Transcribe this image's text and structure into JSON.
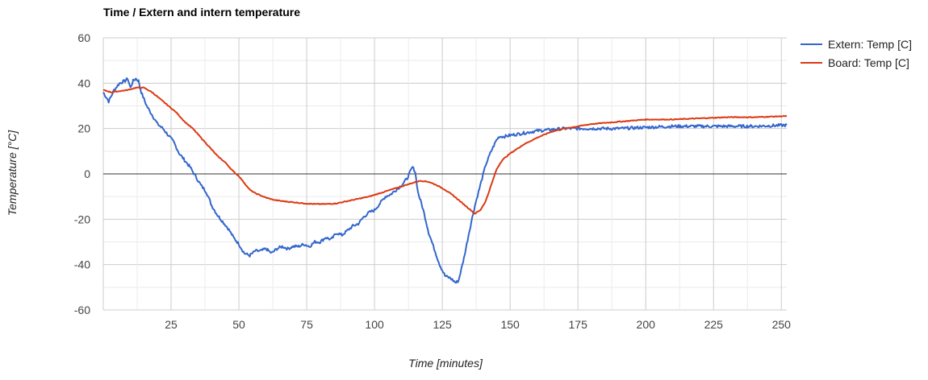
{
  "chart_data": {
    "type": "line",
    "title": "Time / Extern and intern temperature",
    "xlabel": "Time [minutes]",
    "ylabel": "Temperature [°C]",
    "xlim": [
      0,
      252
    ],
    "ylim": [
      -60,
      60
    ],
    "x_ticks": [
      25,
      50,
      75,
      100,
      125,
      150,
      175,
      200,
      225,
      250
    ],
    "y_ticks": [
      60,
      40,
      20,
      0,
      -20,
      -40,
      -60
    ],
    "grid": true,
    "legend_position": "right",
    "series": [
      {
        "name": "Extern: Temp [C]",
        "color": "#3366cc",
        "points": [
          [
            0,
            36
          ],
          [
            2,
            32
          ],
          [
            4,
            37
          ],
          [
            6,
            40
          ],
          [
            8,
            41
          ],
          [
            9,
            42
          ],
          [
            10,
            38
          ],
          [
            11,
            41
          ],
          [
            12,
            42
          ],
          [
            13,
            41
          ],
          [
            14,
            36
          ],
          [
            16,
            30
          ],
          [
            18,
            26
          ],
          [
            20,
            22
          ],
          [
            22,
            20
          ],
          [
            24,
            17
          ],
          [
            26,
            14
          ],
          [
            28,
            9
          ],
          [
            30,
            6
          ],
          [
            32,
            3
          ],
          [
            34,
            -1
          ],
          [
            36,
            -5
          ],
          [
            38,
            -8
          ],
          [
            40,
            -14
          ],
          [
            42,
            -18
          ],
          [
            44,
            -21
          ],
          [
            46,
            -24
          ],
          [
            48,
            -28
          ],
          [
            50,
            -31
          ],
          [
            52,
            -35
          ],
          [
            54,
            -36
          ],
          [
            56,
            -34
          ],
          [
            58,
            -34
          ],
          [
            60,
            -33
          ],
          [
            62,
            -35
          ],
          [
            64,
            -33
          ],
          [
            66,
            -32
          ],
          [
            68,
            -33
          ],
          [
            70,
            -32
          ],
          [
            72,
            -32
          ],
          [
            74,
            -31
          ],
          [
            76,
            -32
          ],
          [
            78,
            -30
          ],
          [
            80,
            -30
          ],
          [
            82,
            -28
          ],
          [
            84,
            -29
          ],
          [
            86,
            -26
          ],
          [
            88,
            -27
          ],
          [
            90,
            -25
          ],
          [
            92,
            -23
          ],
          [
            94,
            -22
          ],
          [
            96,
            -19
          ],
          [
            98,
            -17
          ],
          [
            100,
            -16
          ],
          [
            102,
            -13
          ],
          [
            104,
            -10
          ],
          [
            106,
            -9
          ],
          [
            108,
            -7
          ],
          [
            110,
            -5
          ],
          [
            112,
            -2
          ],
          [
            114,
            3
          ],
          [
            115,
            1
          ],
          [
            116,
            -8
          ],
          [
            118,
            -16
          ],
          [
            120,
            -26
          ],
          [
            122,
            -33
          ],
          [
            124,
            -40
          ],
          [
            126,
            -45
          ],
          [
            128,
            -46
          ],
          [
            130,
            -48
          ],
          [
            131,
            -47
          ],
          [
            133,
            -37
          ],
          [
            135,
            -25
          ],
          [
            137,
            -14
          ],
          [
            139,
            -5
          ],
          [
            141,
            4
          ],
          [
            143,
            10
          ],
          [
            145,
            15
          ],
          [
            146,
            16.5
          ],
          [
            148,
            16.5
          ],
          [
            150,
            17
          ],
          [
            155,
            18
          ],
          [
            160,
            19
          ],
          [
            165,
            19.5
          ],
          [
            170,
            20
          ],
          [
            175,
            20
          ],
          [
            180,
            20
          ],
          [
            190,
            20
          ],
          [
            200,
            20.5
          ],
          [
            210,
            21
          ],
          [
            220,
            21
          ],
          [
            230,
            21
          ],
          [
            240,
            21
          ],
          [
            252,
            21.5
          ]
        ]
      },
      {
        "name": "Board: Temp [C]",
        "color": "#dc3912",
        "points": [
          [
            0,
            37
          ],
          [
            3,
            36
          ],
          [
            6,
            36.5
          ],
          [
            9,
            37
          ],
          [
            12,
            38
          ],
          [
            15,
            38
          ],
          [
            18,
            36
          ],
          [
            21,
            33
          ],
          [
            24,
            30
          ],
          [
            27,
            27
          ],
          [
            30,
            23
          ],
          [
            33,
            20
          ],
          [
            36,
            16
          ],
          [
            39,
            12
          ],
          [
            42,
            8
          ],
          [
            45,
            5
          ],
          [
            48,
            1
          ],
          [
            50,
            -1
          ],
          [
            52,
            -4
          ],
          [
            54,
            -7
          ],
          [
            56,
            -8.5
          ],
          [
            58,
            -9.5
          ],
          [
            60,
            -10.5
          ],
          [
            63,
            -11.5
          ],
          [
            66,
            -12
          ],
          [
            70,
            -12.5
          ],
          [
            74,
            -13
          ],
          [
            78,
            -13.3
          ],
          [
            82,
            -13.3
          ],
          [
            86,
            -13
          ],
          [
            90,
            -12
          ],
          [
            94,
            -11
          ],
          [
            98,
            -10
          ],
          [
            102,
            -8.5
          ],
          [
            106,
            -7
          ],
          [
            110,
            -5.5
          ],
          [
            114,
            -4
          ],
          [
            117,
            -3
          ],
          [
            120,
            -3.5
          ],
          [
            123,
            -5
          ],
          [
            126,
            -7
          ],
          [
            129,
            -9.5
          ],
          [
            132,
            -12.5
          ],
          [
            135,
            -15.5
          ],
          [
            137,
            -17.5
          ],
          [
            139,
            -16
          ],
          [
            141,
            -12
          ],
          [
            143,
            -5
          ],
          [
            145,
            2
          ],
          [
            147,
            6
          ],
          [
            150,
            9
          ],
          [
            155,
            13
          ],
          [
            160,
            16
          ],
          [
            165,
            18.5
          ],
          [
            170,
            20
          ],
          [
            175,
            21
          ],
          [
            180,
            22
          ],
          [
            190,
            23
          ],
          [
            200,
            24
          ],
          [
            210,
            24
          ],
          [
            220,
            24.5
          ],
          [
            230,
            25
          ],
          [
            240,
            25
          ],
          [
            252,
            25.5
          ]
        ]
      }
    ]
  }
}
